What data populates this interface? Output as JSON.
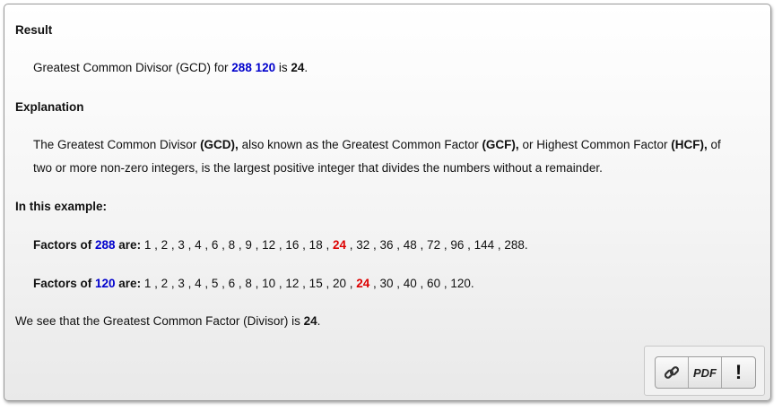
{
  "result": {
    "heading": "Result",
    "prefix": "Greatest Common Divisor (GCD) for ",
    "num1": "288",
    "num2": "120",
    "mid": " is ",
    "answer": "24",
    "end": "."
  },
  "explanation": {
    "heading": "Explanation",
    "p1_a": "The Greatest Common Divisor ",
    "gcd": "(GCD),",
    "p1_b": " also known as the Greatest Common Factor ",
    "gcf": "(GCF),",
    "p1_c": " or Highest Common Factor ",
    "hcf": "(HCF),",
    "p1_d": " of",
    "p2": "two or more non-zero integers, is the largest positive integer that divides the numbers without a remainder."
  },
  "example": {
    "heading": "In this example:",
    "factors_label": "Factors of ",
    "are_label": " are:",
    "row1": {
      "number": "288",
      "before": " 1 , 2 , 3 , 4 , 6 , 8 , 9 , 12 , 16 , 18 , ",
      "common": "24",
      "after": " , 32 , 36 , 48 , 72 , 96 , 144 , 288."
    },
    "row2": {
      "number": "120",
      "before": " 1 , 2 , 3 , 4 , 5 , 6 , 8 , 10 , 12 , 15 , 20 , ",
      "common": "24",
      "after": " , 30 , 40 , 60 , 120."
    }
  },
  "conclusion": {
    "prefix": "We see that the Greatest Common Factor (Divisor) is ",
    "answer": "24",
    "end": "."
  },
  "toolbar": {
    "link_icon": "link-icon",
    "pdf_label": "PDF",
    "report_label": "!"
  }
}
